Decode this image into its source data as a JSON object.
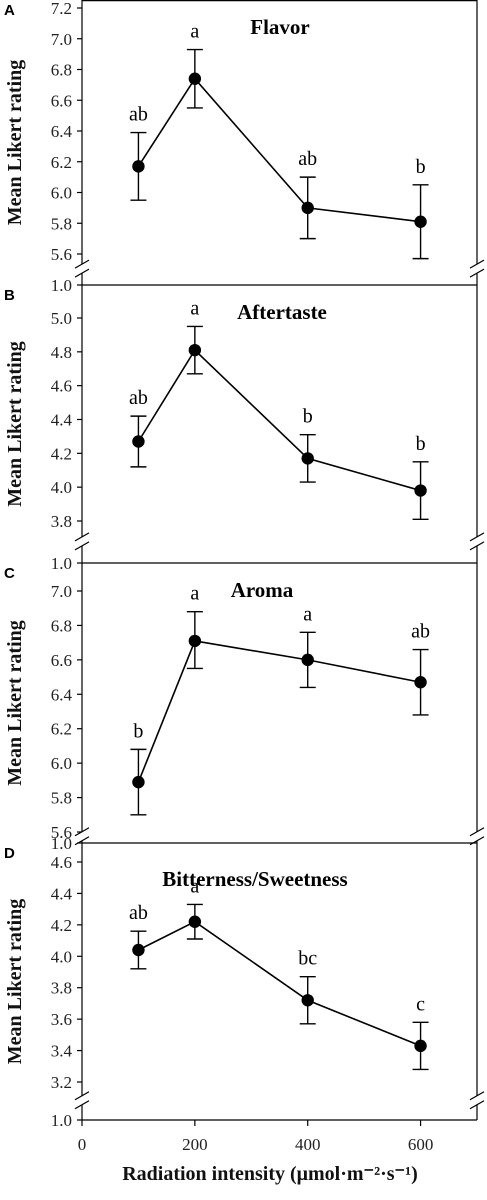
{
  "chart_data": [
    {
      "panel": "A",
      "title": "Flavor",
      "type": "line",
      "x": [
        100,
        200,
        400,
        600
      ],
      "values": [
        6.17,
        6.74,
        5.9,
        5.81
      ],
      "errors": [
        [
          5.95,
          6.39
        ],
        [
          6.55,
          6.93
        ],
        [
          5.7,
          6.1
        ],
        [
          5.57,
          6.05
        ]
      ],
      "letters": [
        "ab",
        "a",
        "ab",
        "b"
      ],
      "ylabel": "Mean Likert rating",
      "ylim": [
        5.6,
        7.2
      ],
      "yticks": [
        "5.6",
        "5.8",
        "6.0",
        "6.2",
        "6.4",
        "6.6",
        "6.8",
        "7.0",
        "7.2"
      ],
      "ybreak_label": "1.0"
    },
    {
      "panel": "B",
      "title": "Aftertaste",
      "type": "line",
      "x": [
        100,
        200,
        400,
        600
      ],
      "values": [
        4.27,
        4.81,
        4.17,
        3.98
      ],
      "errors": [
        [
          4.12,
          4.42
        ],
        [
          4.67,
          4.95
        ],
        [
          4.03,
          4.31
        ],
        [
          3.81,
          4.15
        ]
      ],
      "letters": [
        "ab",
        "a",
        "b",
        "b"
      ],
      "ylabel": "Mean Likert rating",
      "ylim": [
        3.8,
        5.0
      ],
      "yticks": [
        "3.8",
        "4.0",
        "4.2",
        "4.4",
        "4.6",
        "4.8",
        "5.0"
      ],
      "ybreak_label": "1.0"
    },
    {
      "panel": "C",
      "title": "Aroma",
      "type": "line",
      "x": [
        100,
        200,
        400,
        600
      ],
      "values": [
        5.89,
        6.71,
        6.6,
        6.47
      ],
      "errors": [
        [
          5.7,
          6.08
        ],
        [
          6.55,
          6.88
        ],
        [
          6.44,
          6.76
        ],
        [
          6.28,
          6.66
        ]
      ],
      "letters": [
        "b",
        "a",
        "a",
        "ab"
      ],
      "ylabel": "Mean Likert rating",
      "ylim": [
        5.6,
        7.0
      ],
      "yticks": [
        "5.6",
        "5.8",
        "6.0",
        "6.2",
        "6.4",
        "6.6",
        "6.8",
        "7.0"
      ],
      "ybreak_label": "1.0"
    },
    {
      "panel": "D",
      "title": "Bitterness/Sweetness",
      "type": "line",
      "x": [
        100,
        200,
        400,
        600
      ],
      "values": [
        4.04,
        4.22,
        3.72,
        3.43
      ],
      "errors": [
        [
          3.92,
          4.16
        ],
        [
          4.11,
          4.33
        ],
        [
          3.57,
          3.87
        ],
        [
          3.28,
          3.58
        ]
      ],
      "letters": [
        "ab",
        "a",
        "bc",
        "c"
      ],
      "ylabel": "Mean Likert rating",
      "ylim": [
        3.2,
        4.6
      ],
      "yticks": [
        "3.2",
        "3.4",
        "3.6",
        "3.8",
        "4.0",
        "4.2",
        "4.4",
        "4.6"
      ],
      "ybreak_label": "1.0",
      "xlabel": "Radiation intensity (μmol·m⁻²·s⁻¹)",
      "xlim": [
        0,
        700
      ],
      "xticks": [
        "0",
        "200",
        "400",
        "600"
      ]
    }
  ]
}
